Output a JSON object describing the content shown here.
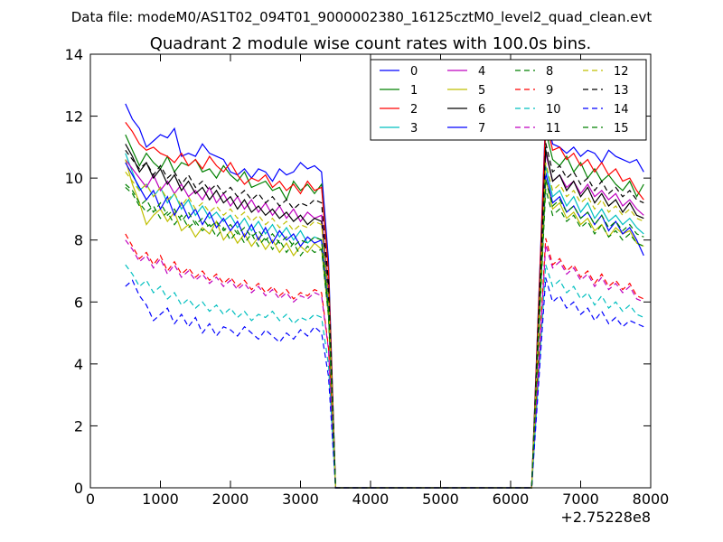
{
  "chart_data": {
    "type": "line",
    "suptitle": "Data file: modeM0/AS1T02_094T01_9000002380_16125cztM0_level2_quad_clean.evt",
    "title": "Quadrant 2 module wise count rates with 100.0s bins.",
    "xlabel": "",
    "ylabel": "",
    "x_offset_label": "+2.75228e8",
    "xlim": [
      0,
      8000
    ],
    "ylim": [
      0,
      14
    ],
    "x_ticks": [
      "0",
      "1000",
      "2000",
      "3000",
      "4000",
      "5000",
      "6000",
      "7000",
      "8000"
    ],
    "y_ticks": [
      "0",
      "2",
      "4",
      "6",
      "8",
      "10",
      "12",
      "14"
    ],
    "legend_position": "upper-right",
    "bin_width_s": 100,
    "active_segments": [
      {
        "start": 500,
        "end": 3300
      },
      {
        "start": 6500,
        "end": 7900
      }
    ],
    "zero_gap": {
      "from": 3500,
      "to": 6300
    },
    "series": [
      {
        "name": "0",
        "color": "#0000ff",
        "dash": "solid",
        "seg1": [
          12.4,
          11.9,
          11.6,
          11.0,
          11.2,
          11.4,
          11.3,
          11.6,
          10.7,
          10.8,
          10.7,
          11.1,
          10.8,
          10.7,
          10.6,
          10.2,
          10.1,
          10.3,
          10.0,
          10.3,
          10.2,
          9.9,
          10.3,
          10.1,
          10.2,
          10.5,
          10.3,
          10.4,
          10.2
        ],
        "seg2": [
          11.4,
          11.1,
          11.0,
          10.8,
          11.0,
          10.7,
          10.9,
          10.8,
          10.5,
          10.9,
          10.7,
          10.6,
          10.5,
          10.6,
          10.2
        ]
      },
      {
        "name": "1",
        "color": "#008000",
        "dash": "solid",
        "seg1": [
          11.4,
          10.9,
          10.4,
          10.8,
          10.5,
          10.3,
          10.7,
          10.2,
          10.5,
          10.4,
          10.6,
          10.2,
          10.3,
          10.0,
          10.4,
          10.1,
          9.9,
          10.2,
          9.7,
          9.8,
          9.9,
          9.6,
          9.7,
          9.3,
          9.9,
          9.6,
          9.8,
          9.5,
          9.8
        ],
        "seg2": [
          10.9,
          10.6,
          10.4,
          10.7,
          10.2,
          10.5,
          10.0,
          10.3,
          9.9,
          10.1,
          9.8,
          9.6,
          9.9,
          9.4,
          9.8
        ]
      },
      {
        "name": "2",
        "color": "#ff0000",
        "dash": "solid",
        "seg1": [
          11.8,
          11.5,
          11.1,
          10.9,
          11.0,
          10.8,
          10.7,
          10.5,
          10.8,
          10.4,
          10.6,
          10.3,
          10.7,
          10.4,
          10.2,
          10.5,
          10.1,
          9.8,
          10.0,
          9.9,
          10.1,
          9.7,
          9.9,
          9.6,
          9.8,
          9.5,
          9.9,
          9.6,
          9.7
        ],
        "seg2": [
          11.2,
          10.9,
          11.0,
          10.6,
          10.8,
          10.4,
          10.6,
          10.2,
          10.5,
          10.1,
          10.3,
          9.9,
          10.0,
          9.6,
          9.3
        ]
      },
      {
        "name": "3",
        "color": "#00bfbf",
        "dash": "solid",
        "seg1": [
          10.8,
          10.2,
          9.6,
          9.8,
          9.4,
          9.7,
          9.2,
          9.5,
          9.0,
          9.3,
          8.8,
          9.1,
          8.7,
          8.9,
          8.6,
          8.8,
          8.4,
          8.7,
          8.3,
          8.6,
          8.2,
          8.5,
          8.1,
          8.4,
          8.0,
          8.3,
          7.9,
          8.1,
          8.0
        ],
        "seg2": [
          9.8,
          9.4,
          9.6,
          9.1,
          9.4,
          8.9,
          9.2,
          8.7,
          9.0,
          8.6,
          8.8,
          8.5,
          8.7,
          8.4,
          8.2
        ]
      },
      {
        "name": "4",
        "color": "#bf00bf",
        "dash": "solid",
        "seg1": [
          10.6,
          10.3,
          10.0,
          9.7,
          10.1,
          9.6,
          9.9,
          9.5,
          9.8,
          9.4,
          9.6,
          9.3,
          9.7,
          9.2,
          9.5,
          9.1,
          9.4,
          9.0,
          9.3,
          8.9,
          9.2,
          8.8,
          9.1,
          8.7,
          9.0,
          8.6,
          8.9,
          8.7,
          8.8
        ],
        "seg2": [
          10.2,
          9.9,
          10.1,
          9.7,
          9.9,
          9.5,
          9.8,
          9.4,
          9.6,
          9.3,
          9.5,
          9.1,
          9.3,
          9.0,
          8.8
        ]
      },
      {
        "name": "5",
        "color": "#bfbf00",
        "dash": "solid",
        "seg1": [
          10.6,
          9.8,
          9.2,
          8.5,
          8.8,
          9.0,
          8.6,
          8.9,
          8.3,
          8.5,
          8.1,
          8.4,
          8.2,
          8.6,
          8.0,
          8.3,
          7.9,
          8.2,
          7.8,
          8.1,
          7.7,
          8.0,
          7.6,
          7.9,
          7.5,
          7.8,
          7.6,
          7.9,
          7.7
        ],
        "seg2": [
          9.4,
          9.0,
          9.2,
          8.7,
          8.9,
          8.5,
          8.7,
          8.3,
          8.5,
          8.1,
          8.4,
          8.2,
          8.3,
          7.9,
          7.8
        ]
      },
      {
        "name": "6",
        "color": "#000000",
        "dash": "solid",
        "seg1": [
          11.1,
          10.7,
          10.2,
          10.5,
          10.0,
          10.3,
          9.8,
          10.1,
          9.6,
          9.9,
          9.5,
          9.7,
          9.3,
          9.6,
          9.2,
          9.4,
          9.0,
          9.3,
          8.9,
          9.1,
          8.8,
          9.0,
          8.7,
          8.9,
          8.6,
          8.8,
          8.5,
          8.7,
          8.6
        ],
        "seg2": [
          10.3,
          9.9,
          10.1,
          9.6,
          9.9,
          9.4,
          9.7,
          9.2,
          9.5,
          9.1,
          9.3,
          8.9,
          9.2,
          8.8,
          8.7
        ]
      },
      {
        "name": "7",
        "color": "#0000ff",
        "dash": "solid",
        "seg1": [
          10.5,
          10.1,
          9.7,
          9.3,
          9.6,
          9.0,
          9.4,
          8.8,
          9.2,
          8.7,
          9.0,
          8.5,
          8.9,
          8.4,
          8.7,
          8.3,
          8.6,
          8.1,
          8.5,
          8.0,
          8.4,
          7.9,
          8.3,
          8.0,
          8.2,
          7.8,
          8.1,
          7.9,
          8.0
        ],
        "seg2": [
          9.6,
          9.2,
          9.4,
          8.9,
          9.1,
          8.7,
          8.9,
          8.5,
          8.8,
          8.3,
          8.6,
          8.2,
          8.4,
          8.0,
          7.5
        ]
      },
      {
        "name": "8",
        "color": "#008000",
        "dash": "dashed",
        "seg1": [
          9.8,
          9.6,
          9.2,
          8.9,
          9.1,
          8.7,
          8.9,
          8.5,
          8.8,
          8.4,
          8.6,
          8.3,
          8.5,
          8.1,
          8.4,
          8.0,
          8.3,
          7.9,
          8.2,
          7.8,
          8.1,
          7.7,
          8.0,
          7.6,
          7.9,
          7.5,
          7.8,
          7.6,
          7.7
        ],
        "seg2": [
          9.1,
          8.8,
          9.0,
          8.6,
          8.8,
          8.4,
          8.6,
          8.2,
          8.5,
          8.1,
          8.3,
          8.0,
          8.2,
          7.9,
          7.8
        ]
      },
      {
        "name": "9",
        "color": "#ff0000",
        "dash": "dashed",
        "seg1": [
          8.2,
          7.8,
          7.4,
          7.6,
          7.2,
          7.5,
          7.0,
          7.3,
          6.9,
          7.1,
          6.8,
          7.0,
          6.7,
          6.9,
          6.6,
          6.8,
          6.5,
          6.7,
          6.4,
          6.6,
          6.3,
          6.5,
          6.2,
          6.4,
          6.1,
          6.3,
          6.2,
          6.4,
          6.3
        ],
        "seg2": [
          7.6,
          7.2,
          7.4,
          7.0,
          7.2,
          6.8,
          7.0,
          6.6,
          6.9,
          6.5,
          6.7,
          6.4,
          6.6,
          6.2,
          6.1
        ]
      },
      {
        "name": "10",
        "color": "#00bfbf",
        "dash": "dashed",
        "seg1": [
          7.2,
          6.9,
          6.5,
          6.7,
          6.3,
          6.5,
          6.1,
          6.3,
          5.9,
          6.1,
          5.8,
          6.0,
          5.7,
          5.9,
          5.6,
          5.8,
          5.5,
          5.7,
          5.4,
          5.6,
          5.5,
          5.7,
          5.4,
          5.6,
          5.3,
          5.5,
          5.4,
          5.6,
          5.5
        ],
        "seg2": [
          6.8,
          6.5,
          6.7,
          6.3,
          6.5,
          6.1,
          6.3,
          5.9,
          6.2,
          5.8,
          6.0,
          5.7,
          5.9,
          5.6,
          5.5
        ]
      },
      {
        "name": "11",
        "color": "#bf00bf",
        "dash": "dashed",
        "seg1": [
          8.0,
          7.7,
          7.3,
          7.5,
          7.1,
          7.4,
          6.9,
          7.2,
          6.8,
          7.0,
          6.7,
          6.9,
          6.6,
          6.8,
          6.5,
          6.7,
          6.4,
          6.6,
          6.3,
          6.5,
          6.2,
          6.4,
          6.1,
          6.3,
          6.0,
          6.2,
          6.1,
          6.3,
          6.2
        ],
        "seg2": [
          7.4,
          7.1,
          7.3,
          6.9,
          7.1,
          6.7,
          6.9,
          6.5,
          6.8,
          6.4,
          6.6,
          6.3,
          6.5,
          6.1,
          6.0
        ]
      },
      {
        "name": "12",
        "color": "#bfbf00",
        "dash": "dashed",
        "seg1": [
          10.2,
          9.9,
          9.6,
          9.8,
          9.4,
          9.7,
          9.3,
          9.5,
          9.1,
          9.4,
          9.0,
          9.2,
          8.9,
          9.1,
          8.8,
          9.0,
          8.7,
          8.9,
          8.6,
          8.8,
          8.5,
          8.7,
          8.4,
          8.6,
          8.3,
          8.5,
          8.4,
          8.6,
          8.5
        ],
        "seg2": [
          9.9,
          9.6,
          9.8,
          9.4,
          9.6,
          9.2,
          9.4,
          9.0,
          9.3,
          8.9,
          9.1,
          8.8,
          9.0,
          8.7,
          8.6
        ]
      },
      {
        "name": "13",
        "color": "#000000",
        "dash": "dashed",
        "seg1": [
          10.9,
          10.6,
          10.3,
          10.5,
          10.1,
          10.4,
          10.0,
          10.2,
          9.8,
          10.1,
          9.7,
          9.9,
          9.6,
          9.8,
          9.5,
          9.7,
          9.4,
          9.6,
          9.3,
          9.5,
          9.2,
          9.4,
          9.1,
          9.3,
          9.0,
          9.2,
          9.1,
          9.3,
          9.2
        ],
        "seg2": [
          10.5,
          10.2,
          10.4,
          10.0,
          10.2,
          9.8,
          10.0,
          9.6,
          9.9,
          9.5,
          9.7,
          9.4,
          9.6,
          9.3,
          9.2
        ]
      },
      {
        "name": "14",
        "color": "#0000ff",
        "dash": "dashed",
        "seg1": [
          6.5,
          6.7,
          6.2,
          5.9,
          5.4,
          5.6,
          5.8,
          5.3,
          5.6,
          5.2,
          5.5,
          5.0,
          5.3,
          4.9,
          5.2,
          5.1,
          4.9,
          5.2,
          5.0,
          4.8,
          5.1,
          4.9,
          4.7,
          5.0,
          4.8,
          5.1,
          4.9,
          5.2,
          5.0
        ],
        "seg2": [
          6.4,
          6.0,
          6.2,
          5.8,
          6.0,
          5.6,
          5.8,
          5.4,
          5.7,
          5.3,
          5.5,
          5.2,
          5.4,
          5.3,
          5.2
        ]
      },
      {
        "name": "15",
        "color": "#008000",
        "dash": "dashed",
        "seg1": [
          9.7,
          9.5,
          9.1,
          9.3,
          8.9,
          9.2,
          8.8,
          9.0,
          8.6,
          8.9,
          8.5,
          8.7,
          8.4,
          8.6,
          8.3,
          8.5,
          8.2,
          8.4,
          8.1,
          8.3,
          8.0,
          8.2,
          7.9,
          8.1,
          7.8,
          8.0,
          7.9,
          8.1,
          8.0
        ],
        "seg2": [
          9.4,
          9.1,
          9.3,
          8.9,
          9.1,
          8.7,
          8.9,
          8.5,
          8.8,
          8.4,
          8.6,
          8.3,
          8.5,
          8.2,
          8.1
        ]
      }
    ]
  }
}
